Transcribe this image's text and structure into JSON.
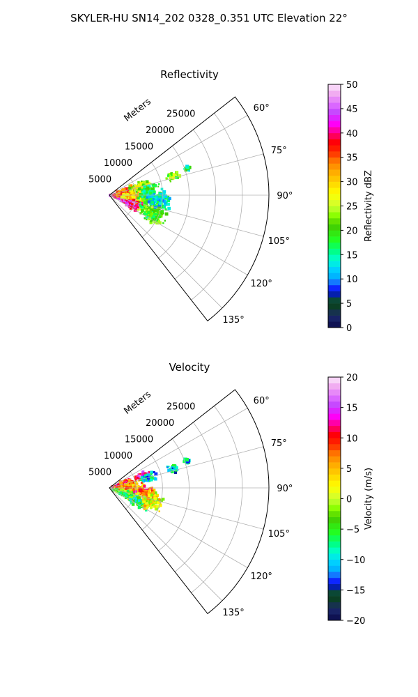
{
  "figure": {
    "suptitle": "SKYLER-HU  SN14_202  0328_0.351 UTC Elevation 22°"
  },
  "chart_data": [
    {
      "type": "heatmap",
      "subtype": "radar-sector-ppi",
      "title": "Reflectivity",
      "range_axis_label": "Meters",
      "range_ticks": [
        5000,
        10000,
        15000,
        20000,
        25000
      ],
      "range_tick_labels": [
        "5000",
        "10000",
        "15000",
        "20000",
        "25000"
      ],
      "range_max": 30000,
      "azimuth_range_deg": [
        52,
        142
      ],
      "azimuth_ticks": [
        60,
        75,
        90,
        105,
        120,
        135
      ],
      "azimuth_tick_labels": [
        "60°",
        "75°",
        "90°",
        "105°",
        "120°",
        "135°"
      ],
      "grid": true,
      "colorbar": {
        "label": "Reflectivity dBZ",
        "min": 0,
        "max": 50,
        "ticks": [
          0,
          5,
          10,
          15,
          20,
          25,
          30,
          35,
          40,
          45,
          50
        ],
        "tick_labels": [
          "0",
          "5",
          "10",
          "15",
          "20",
          "25",
          "30",
          "35",
          "40",
          "45",
          "50"
        ]
      },
      "echo_blobs": [
        {
          "r": 2000,
          "az": 95,
          "dr": 2500,
          "daz": 20,
          "value": 40
        },
        {
          "r": 3500,
          "az": 85,
          "dr": 3000,
          "daz": 25,
          "value": 35
        },
        {
          "r": 5000,
          "az": 100,
          "dr": 3500,
          "daz": 25,
          "value": 30
        },
        {
          "r": 4500,
          "az": 112,
          "dr": 2500,
          "daz": 12,
          "value": 42
        },
        {
          "r": 6000,
          "az": 75,
          "dr": 2500,
          "daz": 12,
          "value": 25
        },
        {
          "r": 7500,
          "az": 88,
          "dr": 3000,
          "daz": 18,
          "value": 18
        },
        {
          "r": 8500,
          "az": 110,
          "dr": 3500,
          "daz": 18,
          "value": 20
        },
        {
          "r": 9500,
          "az": 95,
          "dr": 3000,
          "daz": 12,
          "value": 14
        },
        {
          "r": 12500,
          "az": 73,
          "dr": 1500,
          "daz": 5,
          "value": 22
        },
        {
          "r": 15500,
          "az": 71,
          "dr": 800,
          "daz": 3,
          "value": 17
        }
      ]
    },
    {
      "type": "heatmap",
      "subtype": "radar-sector-ppi",
      "title": "Velocity",
      "range_axis_label": "Meters",
      "range_ticks": [
        5000,
        10000,
        15000,
        20000,
        25000
      ],
      "range_tick_labels": [
        "5000",
        "10000",
        "15000",
        "20000",
        "25000"
      ],
      "range_max": 30000,
      "azimuth_range_deg": [
        52,
        142
      ],
      "azimuth_ticks": [
        60,
        75,
        90,
        105,
        120,
        135
      ],
      "azimuth_tick_labels": [
        "60°",
        "75°",
        "90°",
        "105°",
        "120°",
        "135°"
      ],
      "grid": true,
      "colorbar": {
        "label": "Velocity (m/s)",
        "min": -20,
        "max": 20,
        "ticks": [
          -20,
          -15,
          -10,
          -5,
          0,
          5,
          10,
          15,
          20
        ],
        "tick_labels": [
          "−20",
          "−15",
          "−10",
          "−5",
          "0",
          "5",
          "10",
          "15",
          "20"
        ]
      },
      "echo_blobs": [
        {
          "r": 2500,
          "az": 80,
          "dr": 3000,
          "daz": 20,
          "value": 10
        },
        {
          "r": 4000,
          "az": 92,
          "dr": 3500,
          "daz": 20,
          "value": 5
        },
        {
          "r": 3000,
          "az": 110,
          "dr": 3000,
          "daz": 15,
          "value": -2
        },
        {
          "r": 5500,
          "az": 115,
          "dr": 3500,
          "daz": 12,
          "value": -6
        },
        {
          "r": 6500,
          "az": 70,
          "dr": 2000,
          "daz": 8,
          "value": 14
        },
        {
          "r": 7500,
          "az": 76,
          "dr": 2000,
          "daz": 8,
          "value": -10
        },
        {
          "r": 7000,
          "az": 98,
          "dr": 2500,
          "daz": 12,
          "value": 8
        },
        {
          "r": 8500,
          "az": 108,
          "dr": 2500,
          "daz": 14,
          "value": 2
        },
        {
          "r": 12500,
          "az": 73,
          "dr": 1500,
          "daz": 5,
          "value": -10
        },
        {
          "r": 15500,
          "az": 71,
          "dr": 800,
          "daz": 3,
          "value": -9
        }
      ]
    }
  ]
}
